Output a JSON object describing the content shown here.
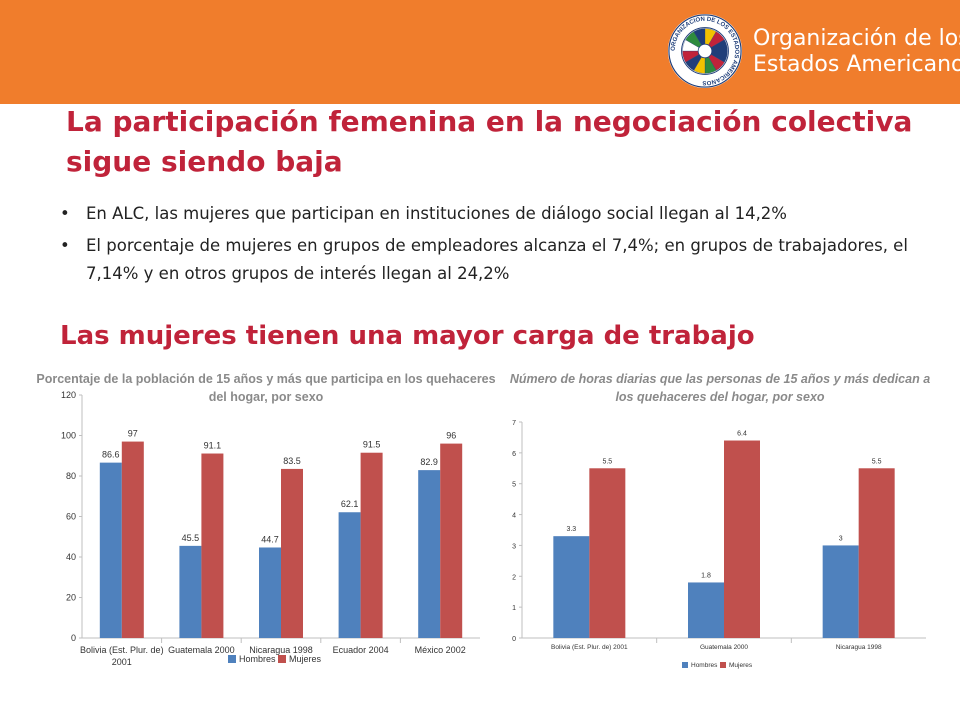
{
  "header": {
    "org_line1": "Organización de los",
    "org_line2": "Estados Americanos",
    "seal_text": "ORGANIZACION DE LOS ESTADOS AMERICANOS",
    "bar_color": "#f07d2c"
  },
  "title_line1": "La participación femenina en la negociación colectiva",
  "title_line2": "sigue siendo baja",
  "bullets": [
    "En ALC, las mujeres que participan en instituciones de diálogo social llegan al 14,2%",
    "El porcentaje de mujeres en grupos de empleadores alcanza el 7,4%; en grupos de trabajadores, el 7,14% y en otros grupos de interés llegan al 24,2%"
  ],
  "subtitle": "Las mujeres tienen una mayor carga de trabajo",
  "colors": {
    "title": "#c0233a",
    "hombres": "#4f81bd",
    "mujeres": "#c0504d"
  },
  "chart_data": [
    {
      "type": "bar",
      "title": "Porcentaje de la población de 15 años y más que participa en los quehaceres del hogar, por sexo",
      "categories": [
        "Bolivia (Est. Plur. de) 2001",
        "Guatemala 2000",
        "Nicaragua 1998",
        "Ecuador 2004",
        "México 2002"
      ],
      "series": [
        {
          "name": "Hombres",
          "values": [
            86.6,
            45.5,
            44.7,
            62.1,
            82.9
          ]
        },
        {
          "name": "Mujeres",
          "values": [
            97,
            91.1,
            83.5,
            91.5,
            96
          ]
        }
      ],
      "value_labels": [
        [
          "86.6",
          "45.5",
          "44.7",
          "62.1",
          "82.9"
        ],
        [
          "97",
          "91.1",
          "83.5",
          "91.5",
          "96"
        ]
      ],
      "ylim": [
        0,
        120
      ],
      "yticks": [
        0,
        20,
        40,
        60,
        80,
        100,
        120
      ],
      "legend": "bottom"
    },
    {
      "type": "bar",
      "title": "Número de horas diarias que las personas de 15 años y más dedican a los quehaceres del hogar, por sexo",
      "categories": [
        "Bolivia (Est. Plur. de) 2001",
        "Guatemala 2000",
        "Nicaragua 1998"
      ],
      "series": [
        {
          "name": "Hombres",
          "values": [
            3.3,
            1.8,
            3
          ]
        },
        {
          "name": "Mujeres",
          "values": [
            5.5,
            6.4,
            5.5
          ]
        }
      ],
      "value_labels": [
        [
          "3.3",
          "1.8",
          "3"
        ],
        [
          "5.5",
          "6.4",
          "5.5"
        ]
      ],
      "ylim": [
        0,
        7
      ],
      "yticks": [
        0,
        1,
        2,
        3,
        4,
        5,
        6,
        7
      ],
      "legend": "bottom"
    }
  ]
}
